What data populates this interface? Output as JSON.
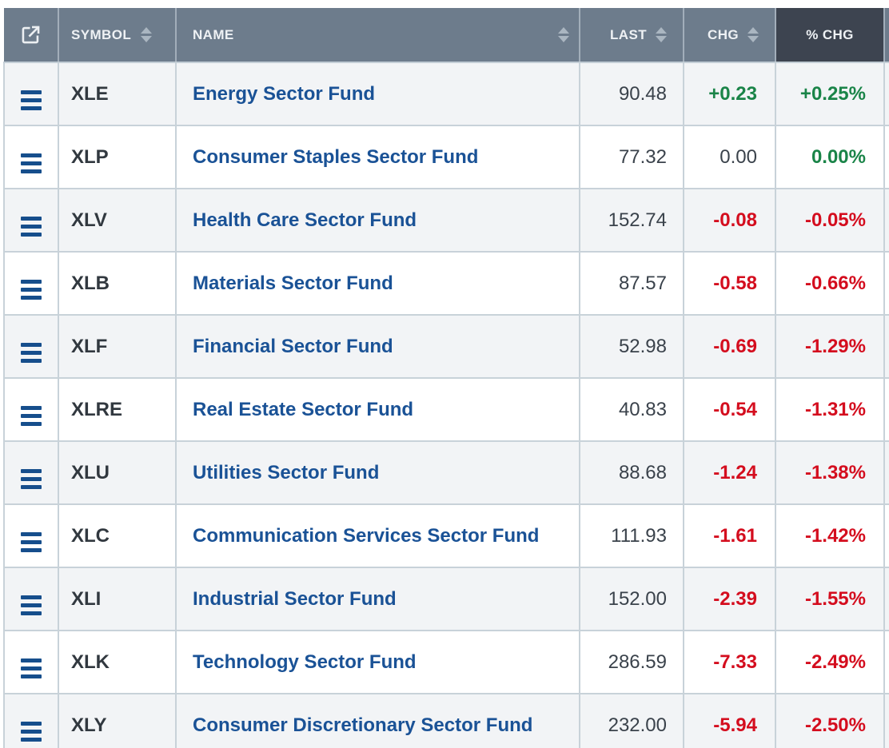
{
  "table": {
    "header": {
      "menu_icon": "external-link-icon",
      "columns": [
        {
          "label": "SYMBOL",
          "sortable": true
        },
        {
          "label": "NAME",
          "sortable": true
        },
        {
          "label": "LAST",
          "sortable": true
        },
        {
          "label": "CHG",
          "sortable": true
        },
        {
          "label": "% CHG",
          "sortable": false,
          "active": true
        }
      ]
    },
    "rows": [
      {
        "symbol": "XLE",
        "name": "Energy Sector Fund",
        "last": "90.48",
        "chg": "+0.23",
        "pct_chg": "+0.25%",
        "chg_dir": "up",
        "pct_dir": "up"
      },
      {
        "symbol": "XLP",
        "name": "Consumer Staples Sector Fund",
        "last": "77.32",
        "chg": "0.00",
        "pct_chg": "0.00%",
        "chg_dir": "flat",
        "pct_dir": "up"
      },
      {
        "symbol": "XLV",
        "name": "Health Care Sector Fund",
        "last": "152.74",
        "chg": "-0.08",
        "pct_chg": "-0.05%",
        "chg_dir": "down",
        "pct_dir": "down"
      },
      {
        "symbol": "XLB",
        "name": "Materials Sector Fund",
        "last": "87.57",
        "chg": "-0.58",
        "pct_chg": "-0.66%",
        "chg_dir": "down",
        "pct_dir": "down"
      },
      {
        "symbol": "XLF",
        "name": "Financial Sector Fund",
        "last": "52.98",
        "chg": "-0.69",
        "pct_chg": "-1.29%",
        "chg_dir": "down",
        "pct_dir": "down"
      },
      {
        "symbol": "XLRE",
        "name": "Real Estate Sector Fund",
        "last": "40.83",
        "chg": "-0.54",
        "pct_chg": "-1.31%",
        "chg_dir": "down",
        "pct_dir": "down"
      },
      {
        "symbol": "XLU",
        "name": "Utilities Sector Fund",
        "last": "88.68",
        "chg": "-1.24",
        "pct_chg": "-1.38%",
        "chg_dir": "down",
        "pct_dir": "down"
      },
      {
        "symbol": "XLC",
        "name": "Communication Services Sector Fund",
        "last": "111.93",
        "chg": "-1.61",
        "pct_chg": "-1.42%",
        "chg_dir": "down",
        "pct_dir": "down"
      },
      {
        "symbol": "XLI",
        "name": "Industrial Sector Fund",
        "last": "152.00",
        "chg": "-2.39",
        "pct_chg": "-1.55%",
        "chg_dir": "down",
        "pct_dir": "down"
      },
      {
        "symbol": "XLK",
        "name": "Technology Sector Fund",
        "last": "286.59",
        "chg": "-7.33",
        "pct_chg": "-2.49%",
        "chg_dir": "down",
        "pct_dir": "down"
      },
      {
        "symbol": "XLY",
        "name": "Consumer Discretionary Sector Fund",
        "last": "232.00",
        "chg": "-5.94",
        "pct_chg": "-2.50%",
        "chg_dir": "down",
        "pct_dir": "down"
      }
    ],
    "colors": {
      "header_bg": "#6d7c8c",
      "header_active_bg": "#3d4450",
      "header_text": "#eef1f4",
      "up_green": "#1a8448",
      "down_red": "#d40d1e",
      "flat_text": "#3a424b",
      "link_blue": "#1a5296",
      "row_alt_bg": "#f2f4f6",
      "border": "#c8d2d9",
      "burger_blue": "#164e8c"
    }
  }
}
